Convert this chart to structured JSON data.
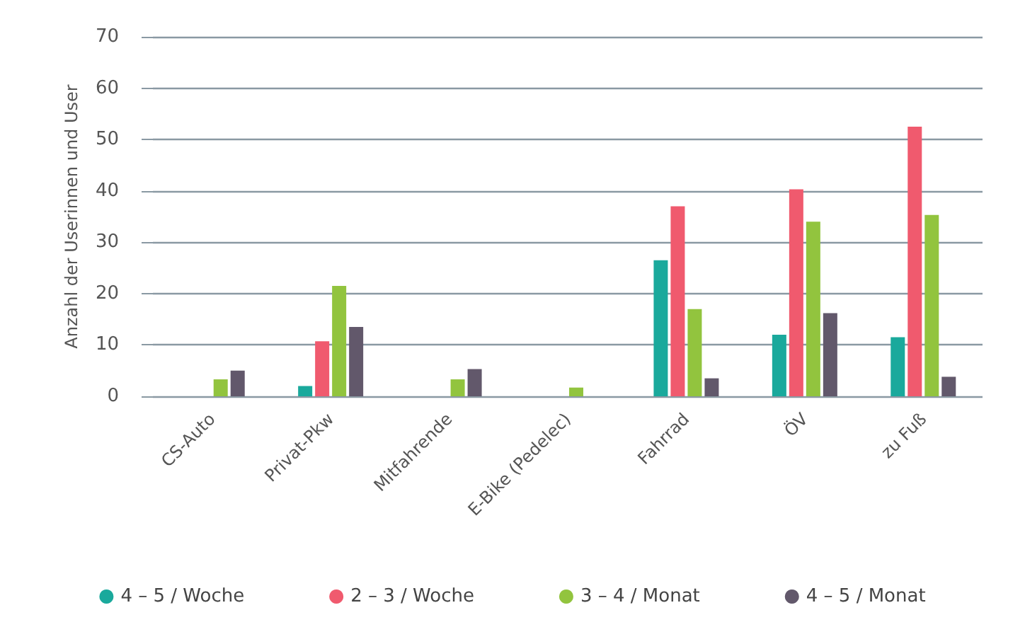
{
  "chart_data": {
    "type": "bar",
    "ylabel": "Anzahl der Userinnen und User",
    "categories": [
      "CS-Auto",
      "Privat-Pkw",
      "Mitfahrende",
      "E-Bike (Pedelec)",
      "Fahrrad",
      "ÖV",
      "zu Fuß"
    ],
    "series": [
      {
        "name": "4 – 5 / Woche",
        "color": "#1aa99c",
        "values": [
          0,
          2,
          0,
          0,
          26.5,
          12,
          11.5
        ]
      },
      {
        "name": "2 – 3 / Woche",
        "color": "#f05a6e",
        "values": [
          0,
          10.7,
          0,
          0,
          37,
          40.3,
          52.5
        ]
      },
      {
        "name": "3 – 4 / Monat",
        "color": "#92c43e",
        "values": [
          3.3,
          21.5,
          3.3,
          1.7,
          17,
          34,
          35.3
        ]
      },
      {
        "name": "4 – 5 / Monat",
        "color": "#62586b",
        "values": [
          5,
          13.5,
          5.3,
          0,
          3.5,
          16.2,
          3.8
        ]
      }
    ],
    "ylim": [
      0,
      70
    ],
    "yticks": [
      0,
      10,
      20,
      30,
      40,
      50,
      60,
      70
    ],
    "grid": "y",
    "legend": "bottom"
  }
}
